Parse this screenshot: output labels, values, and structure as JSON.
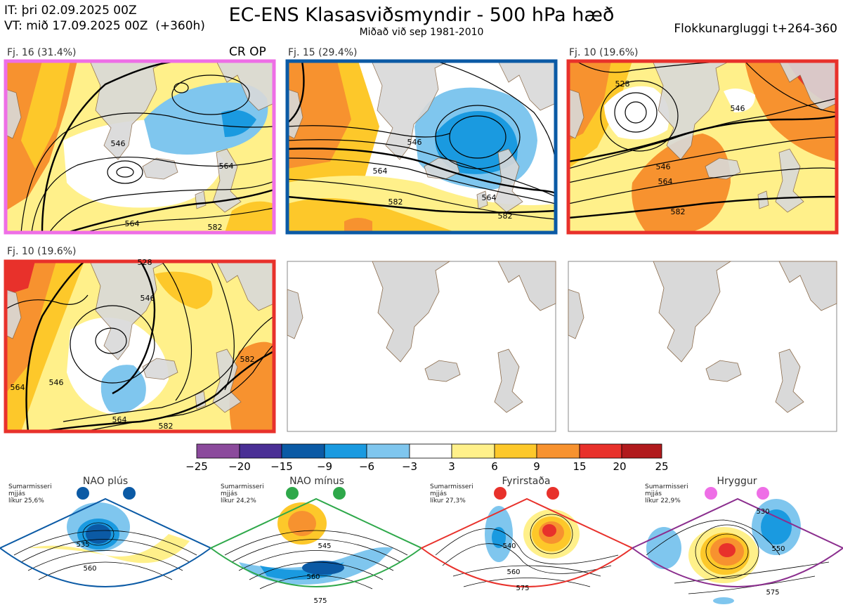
{
  "header": {
    "init_time": "IT: þri 02.09.2025 00Z",
    "valid_time": "VT: mið 17.09.2025 00Z  (+360h)",
    "title": "EC-ENS Klasasviðsmyndir - 500 hPa hæð",
    "subtitle": "Miðað við sep 1981-2010",
    "window": "Flokkunargluggi t+264-360"
  },
  "panels": [
    {
      "label": "Fj. 16 (31.4%)",
      "extra": "CR OP",
      "frame_color": "#ee6ee6",
      "contours": [
        "546",
        "564",
        "564",
        "582"
      ]
    },
    {
      "label": "Fj. 15 (29.4%)",
      "frame_color": "#0b5aa5",
      "contours": [
        "546",
        "564",
        "564",
        "582",
        "582"
      ]
    },
    {
      "label": "Fj. 10 (19.6%)",
      "frame_color": "#e8312b",
      "contours": [
        "528",
        "546",
        "546",
        "564",
        "582"
      ]
    },
    {
      "label": "Fj. 10 (19.6%)",
      "frame_color": "#e8312b",
      "contours": [
        "528",
        "546",
        "546",
        "564",
        "564",
        "582",
        "582"
      ]
    }
  ],
  "colorbar": {
    "ticks": [
      "−25",
      "−20",
      "−15",
      "−9",
      "−6",
      "−3",
      "3",
      "6",
      "9",
      "15",
      "20",
      "25"
    ],
    "colors": [
      "#8b4a9c",
      "#4a2f95",
      "#0b5aa5",
      "#1a9ae0",
      "#7fc6ee",
      "#ffffff",
      "#fff08a",
      "#fdc82a",
      "#f7922f",
      "#e8312b",
      "#b11a1d"
    ]
  },
  "patterns": [
    {
      "title": "NAO plús",
      "season": "Sumarmisseri",
      "smoothing": "mjjás",
      "probability": "líkur 25,6%",
      "marker_color": "#0b5aa5",
      "frame_color": "#0b5aa5",
      "contours": [
        "535",
        "560"
      ]
    },
    {
      "title": "NAO mínus",
      "season": "Sumarmisseri",
      "smoothing": "mjjás",
      "probability": "líkur 24,2%",
      "marker_color": "#2ea84a",
      "frame_color": "#2ea84a",
      "contours": [
        "545",
        "560",
        "575"
      ]
    },
    {
      "title": "Fyrirstaða",
      "season": "Sumarmisseri",
      "smoothing": "mjjás",
      "probability": "líkur 27,3%",
      "marker_color": "#e8312b",
      "frame_color": "#e8312b",
      "contours": [
        "540",
        "560",
        "575"
      ]
    },
    {
      "title": "Hryggur",
      "season": "Sumarmisseri",
      "smoothing": "mjjás",
      "probability": "líkur 22,9%",
      "marker_color": "#ee6ee6",
      "frame_color": "#8b2e8e",
      "contours": [
        "530",
        "550",
        "575"
      ]
    }
  ]
}
